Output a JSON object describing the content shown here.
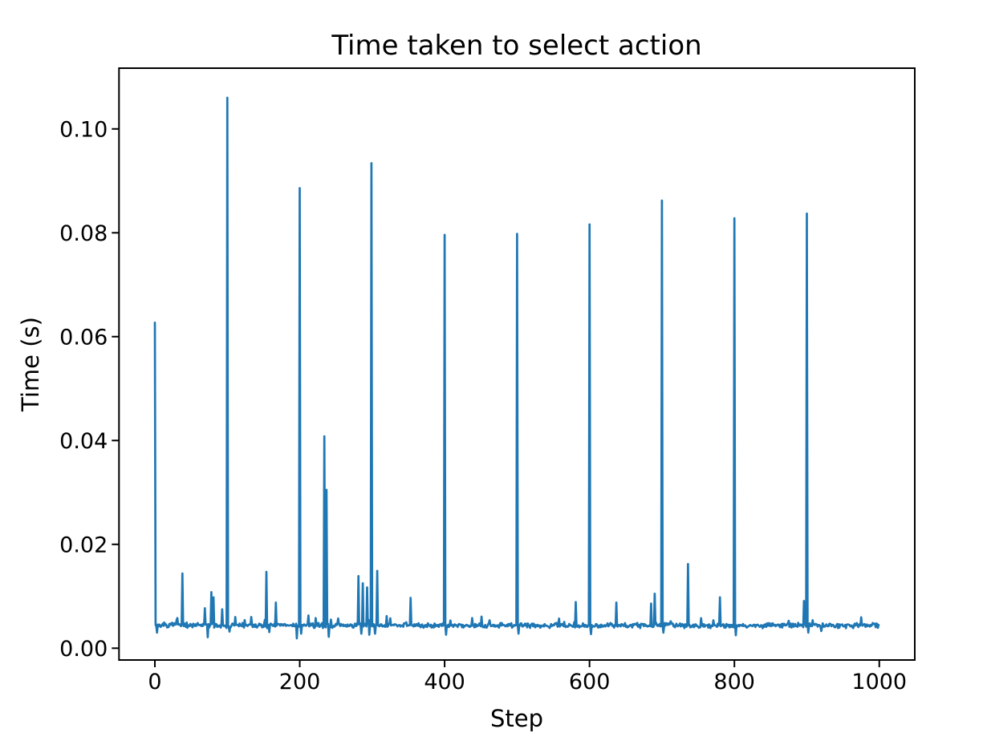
{
  "chart_data": {
    "type": "line",
    "title": "Time taken to select action",
    "xlabel": "Step",
    "ylabel": "Time (s)",
    "x_ticks": [
      0,
      200,
      400,
      600,
      800,
      1000
    ],
    "y_ticks": [
      "0.00",
      "0.02",
      "0.04",
      "0.06",
      "0.08",
      "0.10"
    ],
    "y_tick_values": [
      0.0,
      0.02,
      0.04,
      0.06,
      0.08,
      0.1
    ],
    "xlim": [
      -49.5,
      1049.0
    ],
    "ylim": [
      -0.00227,
      0.1117
    ],
    "n_points": 1000,
    "grid": false,
    "legend": "none",
    "line_color": "#1f77b4",
    "line_width": 2.7,
    "axis_color": "#000000",
    "baseline": 0.0044,
    "noise_amplitude": 0.0011,
    "spikes": [
      [
        0,
        0.0627
      ],
      [
        38,
        0.0144
      ],
      [
        69,
        0.0077
      ],
      [
        78,
        0.0108
      ],
      [
        81,
        0.0098
      ],
      [
        93,
        0.0075
      ],
      [
        100,
        0.106
      ],
      [
        111,
        0.006
      ],
      [
        133,
        0.006
      ],
      [
        154,
        0.0147
      ],
      [
        167,
        0.0088
      ],
      [
        200,
        0.0886
      ],
      [
        212,
        0.0063
      ],
      [
        222,
        0.0058
      ],
      [
        234,
        0.0408
      ],
      [
        237,
        0.0305
      ],
      [
        281,
        0.0139
      ],
      [
        287,
        0.0125
      ],
      [
        293,
        0.0117
      ],
      [
        299,
        0.0934
      ],
      [
        307,
        0.0149
      ],
      [
        320,
        0.0062
      ],
      [
        353,
        0.0097
      ],
      [
        400,
        0.0796
      ],
      [
        438,
        0.0058
      ],
      [
        451,
        0.0061
      ],
      [
        500,
        0.0798
      ],
      [
        581,
        0.0089
      ],
      [
        600,
        0.0816
      ],
      [
        637,
        0.0088
      ],
      [
        685,
        0.0086
      ],
      [
        690,
        0.0105
      ],
      [
        700,
        0.0862
      ],
      [
        736,
        0.0162
      ],
      [
        780,
        0.0098
      ],
      [
        800,
        0.0828
      ],
      [
        896,
        0.0091
      ],
      [
        900,
        0.0837
      ]
    ],
    "dips": [
      [
        3,
        0.003
      ],
      [
        73,
        0.0021
      ],
      [
        103,
        0.0032
      ],
      [
        158,
        0.0031
      ],
      [
        196,
        0.0019
      ],
      [
        202,
        0.0028
      ],
      [
        240,
        0.0022
      ],
      [
        285,
        0.0028
      ],
      [
        296,
        0.0026
      ],
      [
        304,
        0.0028
      ],
      [
        402,
        0.0026
      ],
      [
        502,
        0.0028
      ],
      [
        602,
        0.0027
      ],
      [
        702,
        0.003
      ],
      [
        802,
        0.0025
      ],
      [
        902,
        0.003
      ],
      [
        920,
        0.0033
      ]
    ]
  }
}
